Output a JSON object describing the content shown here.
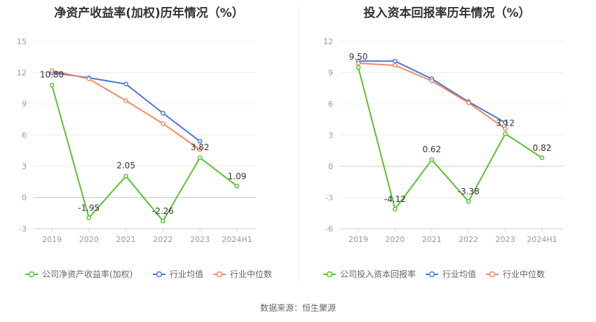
{
  "footer": {
    "source": "数据来源：恒生聚源"
  },
  "chart_data": [
    {
      "type": "line",
      "title": "净资产收益率(加权)历年情况（%）",
      "categories": [
        "2019",
        "2020",
        "2021",
        "2022",
        "2023",
        "2024H1"
      ],
      "ylim": [
        -3,
        15
      ],
      "yticks": [
        -3,
        0,
        3,
        6,
        9,
        12,
        15
      ],
      "grid": true,
      "legend_position": "bottom-left",
      "series": [
        {
          "name": "公司净资产收益率(加权)",
          "color": "#5cc130",
          "values": [
            10.8,
            -1.95,
            2.05,
            -2.26,
            3.82,
            1.09
          ],
          "labels": true
        },
        {
          "name": "行业均值",
          "color": "#4a76dc",
          "values": [
            12.0,
            11.5,
            10.9,
            8.1,
            5.4,
            null
          ],
          "labels": false
        },
        {
          "name": "行业中位数",
          "color": "#f08a60",
          "values": [
            12.2,
            11.4,
            9.3,
            7.1,
            4.6,
            null
          ],
          "labels": false
        }
      ]
    },
    {
      "type": "line",
      "title": "投入资本回报率历年情况（%）",
      "categories": [
        "2019",
        "2020",
        "2021",
        "2022",
        "2023",
        "2024H1"
      ],
      "ylim": [
        -6,
        12
      ],
      "yticks": [
        -6,
        -3,
        0,
        3,
        6,
        9,
        12
      ],
      "grid": true,
      "legend_position": "bottom-left",
      "series": [
        {
          "name": "公司投入资本回报率",
          "color": "#5cc130",
          "values": [
            9.5,
            -4.12,
            0.62,
            -3.38,
            3.12,
            0.82
          ],
          "labels": true
        },
        {
          "name": "行业均值",
          "color": "#4a76dc",
          "values": [
            10.1,
            10.1,
            8.4,
            6.2,
            4.2,
            null
          ],
          "labels": false
        },
        {
          "name": "行业中位数",
          "color": "#f08a60",
          "values": [
            9.9,
            9.7,
            8.2,
            6.1,
            3.6,
            null
          ],
          "labels": false
        }
      ]
    }
  ]
}
